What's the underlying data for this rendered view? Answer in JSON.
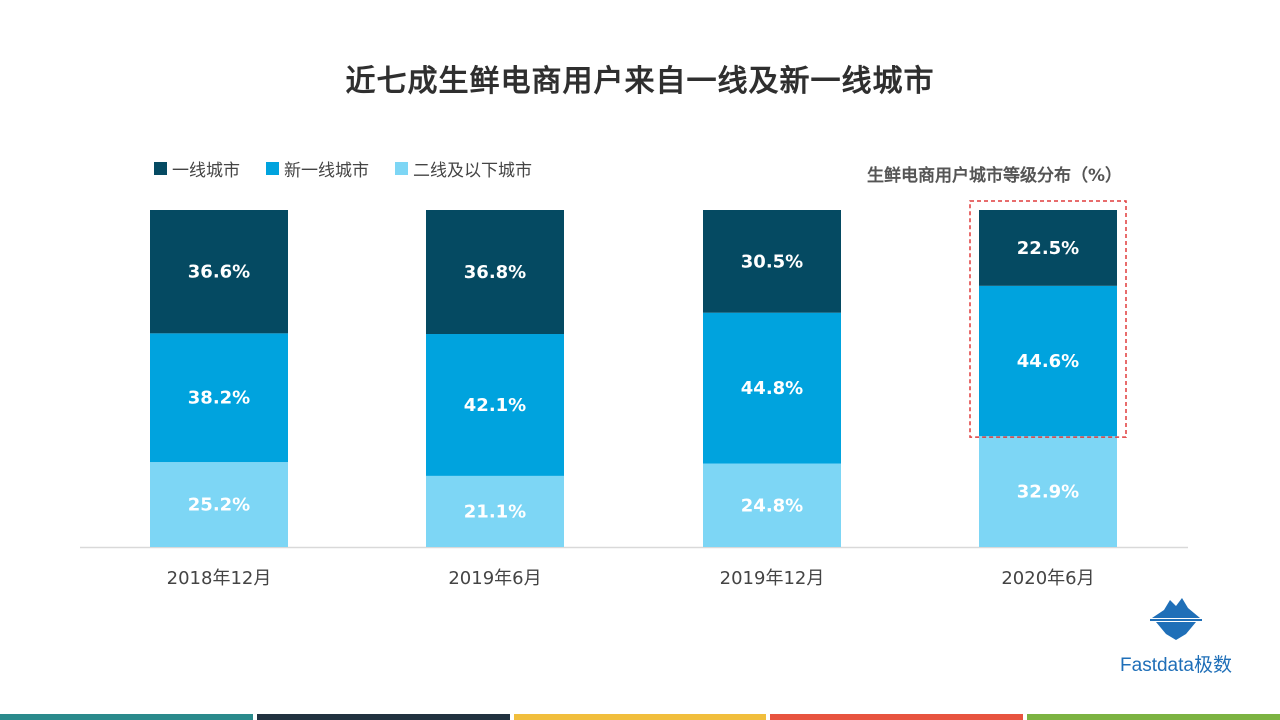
{
  "title": "近七成生鲜电商用户来自一线及新一线城市",
  "subtitle": "生鲜电商用户城市等级分布（%）",
  "logo_text": "Fastdata极数",
  "colors": {
    "tier1": "#054a62",
    "new_tier1": "#00a3de",
    "tier2_below": "#7dd6f5",
    "highlight_border": "#e03c3c",
    "axis": "#d9d9d9"
  },
  "footer_colors": [
    "#2a8a8c",
    "#213240",
    "#f1be3c",
    "#e8543f",
    "#7cb342"
  ],
  "chart_data": {
    "type": "bar",
    "stacked": true,
    "categories": [
      "2018年12月",
      "2019年6月",
      "2019年12月",
      "2020年6月"
    ],
    "series": [
      {
        "name": "二线及以下城市",
        "values": [
          25.2,
          21.1,
          24.8,
          32.9
        ],
        "labels": [
          "25.2%",
          "21.1%",
          "24.8%",
          "32.9%"
        ]
      },
      {
        "name": "新一线城市",
        "values": [
          38.2,
          42.1,
          44.8,
          44.6
        ],
        "labels": [
          "38.2%",
          "42.1%",
          "44.8%",
          "44.6%"
        ]
      },
      {
        "name": "一线城市",
        "values": [
          36.6,
          36.8,
          30.5,
          22.5
        ],
        "labels": [
          "36.6%",
          "36.8%",
          "30.5%",
          "22.5%"
        ]
      }
    ],
    "legend": [
      "一线城市",
      "新一线城市",
      "二线及以下城市"
    ],
    "ylim": [
      0,
      100
    ],
    "highlight": {
      "category": "2020年6月",
      "series": [
        "一线城市",
        "新一线城市"
      ]
    }
  }
}
